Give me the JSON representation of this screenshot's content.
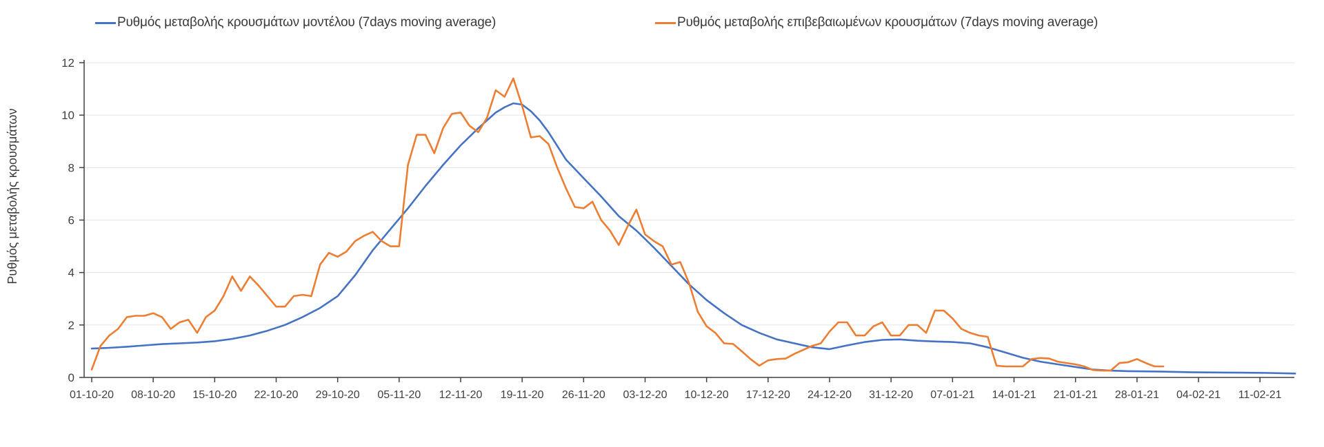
{
  "chart": {
    "background": "#ffffff",
    "axis_color": "#3f3f3f",
    "grid_color": "#e3e3e3",
    "text_color": "#3a3a3a"
  },
  "chart_data": {
    "type": "line",
    "title": "",
    "xlabel": "",
    "ylabel": "Ρυθμός μεταβολής κρουσμάτων",
    "ylim": [
      0,
      12
    ],
    "y_ticks": [
      0,
      2,
      4,
      6,
      8,
      10,
      12
    ],
    "grid": "horizontal",
    "legend_position": "top",
    "x_unit": "days since 01-10-20, one tick every 7 days",
    "x_tick_labels": [
      "01-10-20",
      "08-10-20",
      "15-10-20",
      "22-10-20",
      "29-10-20",
      "05-11-20",
      "12-11-20",
      "19-11-20",
      "26-11-20",
      "03-12-20",
      "10-12-20",
      "17-12-20",
      "24-12-20",
      "31-12-20",
      "07-01-21",
      "14-01-21",
      "21-01-21",
      "28-01-21",
      "04-02-21",
      "11-02-21"
    ],
    "series": [
      {
        "name": "Ρυθμός μεταβολής κρουσμάτων μοντέλου (7days moving average)",
        "color": "#4472c4",
        "points": [
          [
            0,
            1.1
          ],
          [
            2,
            1.13
          ],
          [
            4,
            1.17
          ],
          [
            6,
            1.22
          ],
          [
            8,
            1.27
          ],
          [
            10,
            1.3
          ],
          [
            12,
            1.33
          ],
          [
            14,
            1.38
          ],
          [
            16,
            1.47
          ],
          [
            18,
            1.6
          ],
          [
            20,
            1.78
          ],
          [
            22,
            2.0
          ],
          [
            24,
            2.3
          ],
          [
            26,
            2.65
          ],
          [
            28,
            3.1
          ],
          [
            30,
            3.9
          ],
          [
            32,
            4.85
          ],
          [
            34,
            5.65
          ],
          [
            36,
            6.45
          ],
          [
            38,
            7.3
          ],
          [
            40,
            8.1
          ],
          [
            42,
            8.85
          ],
          [
            44,
            9.5
          ],
          [
            46,
            10.1
          ],
          [
            47,
            10.3
          ],
          [
            48,
            10.45
          ],
          [
            49,
            10.4
          ],
          [
            50,
            10.15
          ],
          [
            51,
            9.8
          ],
          [
            52,
            9.35
          ],
          [
            54,
            8.3
          ],
          [
            56,
            7.6
          ],
          [
            58,
            6.9
          ],
          [
            60,
            6.15
          ],
          [
            62,
            5.6
          ],
          [
            64,
            4.95
          ],
          [
            66,
            4.25
          ],
          [
            68,
            3.55
          ],
          [
            70,
            2.95
          ],
          [
            72,
            2.45
          ],
          [
            74,
            2.0
          ],
          [
            76,
            1.7
          ],
          [
            78,
            1.45
          ],
          [
            80,
            1.3
          ],
          [
            82,
            1.15
          ],
          [
            84,
            1.08
          ],
          [
            86,
            1.22
          ],
          [
            88,
            1.35
          ],
          [
            90,
            1.43
          ],
          [
            92,
            1.45
          ],
          [
            94,
            1.4
          ],
          [
            96,
            1.37
          ],
          [
            98,
            1.35
          ],
          [
            100,
            1.3
          ],
          [
            102,
            1.15
          ],
          [
            104,
            0.95
          ],
          [
            106,
            0.75
          ],
          [
            108,
            0.6
          ],
          [
            110,
            0.5
          ],
          [
            112,
            0.4
          ],
          [
            114,
            0.3
          ],
          [
            116,
            0.26
          ],
          [
            118,
            0.24
          ],
          [
            120,
            0.23
          ],
          [
            122,
            0.22
          ],
          [
            125,
            0.2
          ],
          [
            128,
            0.19
          ],
          [
            131,
            0.18
          ],
          [
            134,
            0.17
          ],
          [
            137,
            0.15
          ]
        ]
      },
      {
        "name": "Ρυθμός μεταβολής επιβεβαιωμένων κρουσμάτων (7days moving average)",
        "color": "#ed7d31",
        "points": [
          [
            0,
            0.3
          ],
          [
            1,
            1.2
          ],
          [
            2,
            1.6
          ],
          [
            3,
            1.85
          ],
          [
            4,
            2.3
          ],
          [
            5,
            2.35
          ],
          [
            6,
            2.35
          ],
          [
            7,
            2.45
          ],
          [
            8,
            2.3
          ],
          [
            9,
            1.85
          ],
          [
            10,
            2.1
          ],
          [
            11,
            2.2
          ],
          [
            12,
            1.7
          ],
          [
            13,
            2.3
          ],
          [
            14,
            2.55
          ],
          [
            15,
            3.1
          ],
          [
            16,
            3.85
          ],
          [
            17,
            3.3
          ],
          [
            18,
            3.85
          ],
          [
            19,
            3.5
          ],
          [
            20,
            3.1
          ],
          [
            21,
            2.7
          ],
          [
            22,
            2.7
          ],
          [
            23,
            3.1
          ],
          [
            24,
            3.15
          ],
          [
            25,
            3.1
          ],
          [
            26,
            4.3
          ],
          [
            27,
            4.75
          ],
          [
            28,
            4.6
          ],
          [
            29,
            4.8
          ],
          [
            30,
            5.2
          ],
          [
            31,
            5.4
          ],
          [
            32,
            5.55
          ],
          [
            33,
            5.2
          ],
          [
            34,
            5.0
          ],
          [
            35,
            5.0
          ],
          [
            36,
            8.1
          ],
          [
            37,
            9.25
          ],
          [
            38,
            9.25
          ],
          [
            39,
            8.55
          ],
          [
            40,
            9.5
          ],
          [
            41,
            10.05
          ],
          [
            42,
            10.1
          ],
          [
            43,
            9.6
          ],
          [
            44,
            9.35
          ],
          [
            45,
            9.9
          ],
          [
            46,
            10.95
          ],
          [
            47,
            10.7
          ],
          [
            48,
            11.4
          ],
          [
            49,
            10.35
          ],
          [
            50,
            9.15
          ],
          [
            51,
            9.2
          ],
          [
            52,
            8.9
          ],
          [
            53,
            8.0
          ],
          [
            54,
            7.2
          ],
          [
            55,
            6.5
          ],
          [
            56,
            6.45
          ],
          [
            57,
            6.7
          ],
          [
            58,
            6.0
          ],
          [
            59,
            5.6
          ],
          [
            60,
            5.05
          ],
          [
            61,
            5.75
          ],
          [
            62,
            6.4
          ],
          [
            63,
            5.45
          ],
          [
            64,
            5.2
          ],
          [
            65,
            5.0
          ],
          [
            66,
            4.3
          ],
          [
            67,
            4.4
          ],
          [
            68,
            3.6
          ],
          [
            69,
            2.5
          ],
          [
            70,
            1.95
          ],
          [
            71,
            1.7
          ],
          [
            72,
            1.3
          ],
          [
            73,
            1.28
          ],
          [
            74,
            1.0
          ],
          [
            75,
            0.7
          ],
          [
            76,
            0.45
          ],
          [
            77,
            0.65
          ],
          [
            78,
            0.7
          ],
          [
            79,
            0.72
          ],
          [
            80,
            0.9
          ],
          [
            81,
            1.05
          ],
          [
            82,
            1.2
          ],
          [
            83,
            1.3
          ],
          [
            84,
            1.75
          ],
          [
            85,
            2.1
          ],
          [
            86,
            2.1
          ],
          [
            87,
            1.6
          ],
          [
            88,
            1.6
          ],
          [
            89,
            1.95
          ],
          [
            90,
            2.1
          ],
          [
            91,
            1.6
          ],
          [
            92,
            1.6
          ],
          [
            93,
            2.0
          ],
          [
            94,
            2.0
          ],
          [
            95,
            1.7
          ],
          [
            96,
            2.55
          ],
          [
            97,
            2.55
          ],
          [
            98,
            2.25
          ],
          [
            99,
            1.85
          ],
          [
            100,
            1.7
          ],
          [
            101,
            1.6
          ],
          [
            102,
            1.55
          ],
          [
            103,
            0.45
          ],
          [
            104,
            0.42
          ],
          [
            105,
            0.42
          ],
          [
            106,
            0.42
          ],
          [
            107,
            0.7
          ],
          [
            108,
            0.74
          ],
          [
            109,
            0.72
          ],
          [
            110,
            0.6
          ],
          [
            111,
            0.55
          ],
          [
            112,
            0.5
          ],
          [
            113,
            0.42
          ],
          [
            114,
            0.28
          ],
          [
            115,
            0.26
          ],
          [
            116,
            0.26
          ],
          [
            117,
            0.55
          ],
          [
            118,
            0.58
          ],
          [
            119,
            0.7
          ],
          [
            120,
            0.55
          ],
          [
            121,
            0.42
          ],
          [
            122,
            0.42
          ]
        ]
      }
    ]
  }
}
